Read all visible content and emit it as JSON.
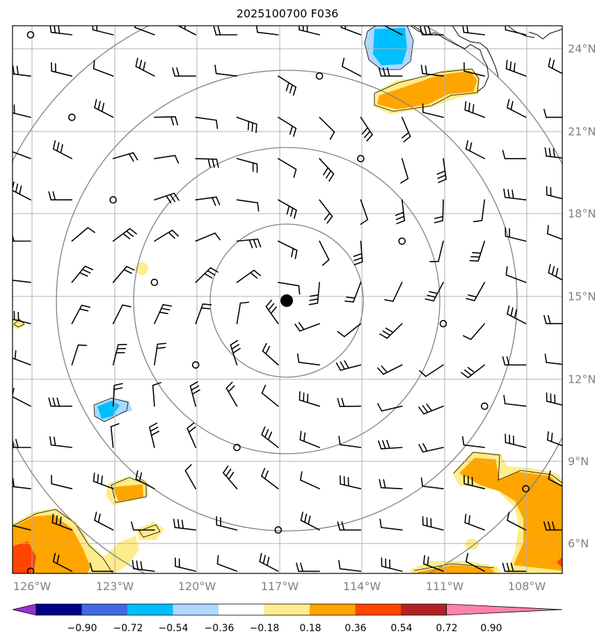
{
  "title": "2025100700 F036",
  "lon_ticks": [
    "126°W",
    "123°W",
    "120°W",
    "117°W",
    "114°W",
    "111°W",
    "108°W"
  ],
  "lat_ticks": [
    "24°N",
    "21°N",
    "18°N",
    "15°N",
    "12°N",
    "9°N",
    "6°N"
  ],
  "colorbar": {
    "labels": [
      "−0.90",
      "−0.72",
      "−0.54",
      "−0.36",
      "−0.18",
      "0.18",
      "0.36",
      "0.54",
      "0.72",
      "0.90"
    ],
    "colors": [
      "#9932cc",
      "#00008b",
      "#4169e1",
      "#00bfff",
      "#add8ff",
      "#ffffff",
      "#ffec8b",
      "#ffa500",
      "#ff4500",
      "#b22222",
      "#ff82ab"
    ]
  },
  "storm_center_icon": "storm-center-dot",
  "colors": {
    "grid": "#b0b0b0",
    "range_ring": "#808080",
    "coast": "#000000",
    "tick_label": "#808080"
  }
}
